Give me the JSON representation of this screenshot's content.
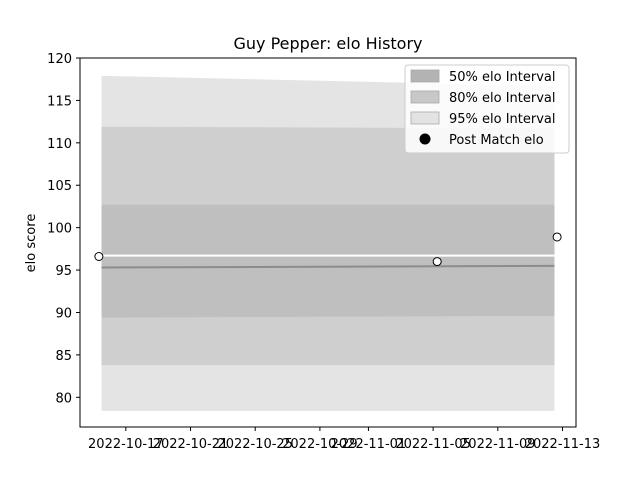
{
  "chart_data": {
    "type": "line",
    "title": "Guy Pepper: elo History",
    "xlabel": "",
    "ylabel": "elo score",
    "ylim": [
      76.5,
      120
    ],
    "xlim": [
      "2022-10-14T04:00",
      "2022-11-13T20:00"
    ],
    "y_ticks": [
      80,
      85,
      90,
      95,
      100,
      105,
      110,
      115,
      120
    ],
    "x_ticks": [
      "2022-10-17",
      "2022-10-21",
      "2022-10-25",
      "2022-10-29",
      "2022-11-01",
      "2022-11-05",
      "2022-11-09",
      "2022-11-13"
    ],
    "grid": false,
    "legend_position": "top-right",
    "legend": [
      {
        "label": "50% elo Interval",
        "color": "#b3b3b3"
      },
      {
        "label": "80% elo Interval",
        "color": "#c8c8c8"
      },
      {
        "label": "95% elo Interval",
        "color": "#e3e3e3"
      },
      {
        "label": "Post Match elo",
        "color": "#000000"
      }
    ],
    "band_x": [
      "2022-10-15T12:00",
      "2022-11-12T12:00"
    ],
    "bands": [
      {
        "level": "95%",
        "color": "#e4e4e4",
        "lower": [
          78.4,
          78.4
        ],
        "upper": [
          117.9,
          116.7
        ]
      },
      {
        "level": "80%",
        "color": "#cfcfcf",
        "lower": [
          83.8,
          83.8
        ],
        "upper": [
          111.9,
          111.7
        ]
      },
      {
        "level": "50%",
        "color": "#bfbfbf",
        "lower": [
          89.4,
          89.6
        ],
        "upper": [
          102.7,
          102.7
        ]
      }
    ],
    "mean_line": {
      "color": "#8c8c8c",
      "y": [
        95.3,
        95.5
      ]
    },
    "white_line": {
      "color": "#ffffff",
      "y": [
        96.7,
        96.7
      ]
    },
    "points": [
      {
        "x": "2022-10-15T08:00",
        "y": 96.6
      },
      {
        "x": "2022-11-05T06:00",
        "y": 96.0
      },
      {
        "x": "2022-11-12T16:00",
        "y": 98.9
      }
    ]
  }
}
